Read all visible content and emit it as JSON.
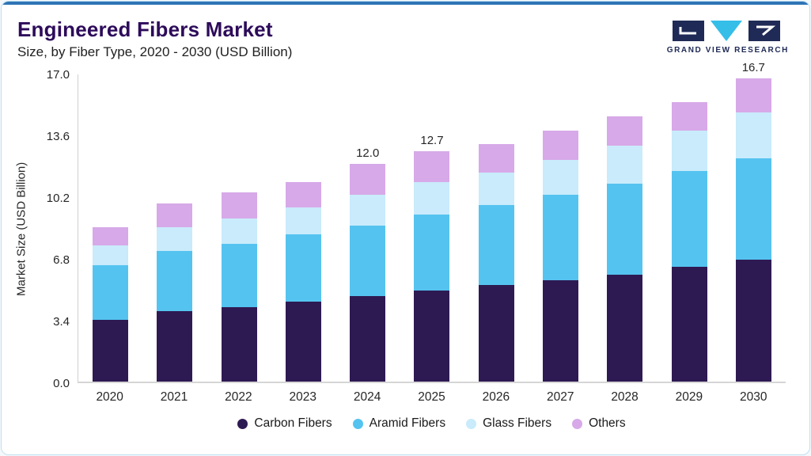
{
  "header": {
    "title": "Engineered Fibers Market",
    "subtitle": "Size, by Fiber Type, 2020 - 2030 (USD Billion)"
  },
  "logo": {
    "text": "GRAND VIEW RESEARCH"
  },
  "colors": {
    "accent_top": "#2E74B5",
    "card_border": "#BFE0F2",
    "title_text": "#2D0B5A",
    "logo_navy": "#1F2A56",
    "logo_cyan": "#35BEE8"
  },
  "chart_data": {
    "type": "bar",
    "stacked": true,
    "title": "Engineered Fibers Market Size, by Fiber Type, 2020 - 2030 (USD Billion)",
    "ylabel": "Market Size (USD Billion)",
    "xlabel": "",
    "ylim": [
      0,
      17.0
    ],
    "yticks": [
      "0.0",
      "3.4",
      "6.8",
      "10.2",
      "13.6",
      "17.0"
    ],
    "grid": false,
    "legend_position": "bottom",
    "categories": [
      "2020",
      "2021",
      "2022",
      "2023",
      "2024",
      "2025",
      "2026",
      "2027",
      "2028",
      "2029",
      "2030"
    ],
    "series": [
      {
        "name": "Carbon Fibers",
        "color": "#2E1A52",
        "values": [
          3.4,
          3.9,
          4.1,
          4.4,
          4.7,
          5.0,
          5.3,
          5.6,
          5.9,
          6.3,
          6.7
        ]
      },
      {
        "name": "Aramid Fibers",
        "color": "#55C3F0",
        "values": [
          3.0,
          3.3,
          3.5,
          3.7,
          3.9,
          4.2,
          4.4,
          4.7,
          5.0,
          5.3,
          5.6
        ]
      },
      {
        "name": "Glass Fibers",
        "color": "#C9EBFB",
        "values": [
          1.1,
          1.3,
          1.4,
          1.5,
          1.7,
          1.8,
          1.8,
          1.9,
          2.1,
          2.2,
          2.5
        ]
      },
      {
        "name": "Others",
        "color": "#D7A9E8",
        "values": [
          1.0,
          1.3,
          1.4,
          1.4,
          1.7,
          1.7,
          1.6,
          1.6,
          1.6,
          1.6,
          1.9
        ]
      }
    ],
    "bar_labels": [
      "",
      "",
      "",
      "",
      "12.0",
      "12.7",
      "",
      "",
      "",
      "",
      "16.7"
    ],
    "totals": [
      8.5,
      9.8,
      10.4,
      11.0,
      12.0,
      12.7,
      13.1,
      13.8,
      14.6,
      15.4,
      16.7
    ]
  }
}
